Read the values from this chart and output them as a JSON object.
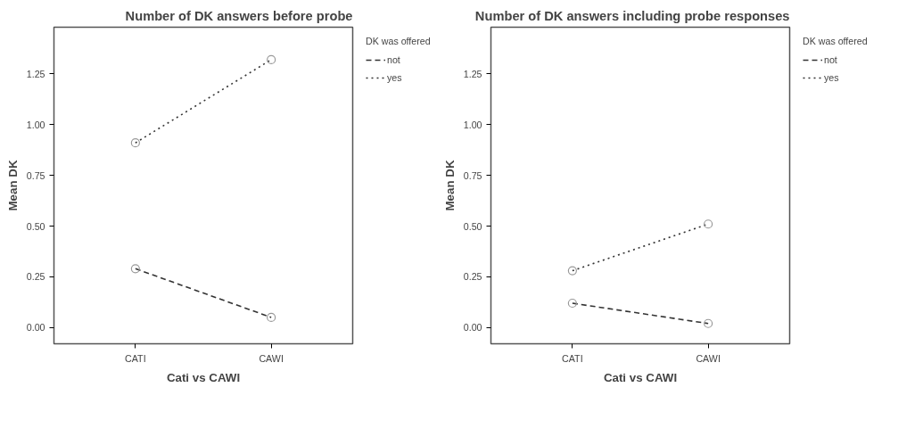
{
  "chart_data": [
    {
      "type": "line",
      "title": "Number of DK answers before probe",
      "xlabel": "Cati vs CAWI",
      "ylabel": "Mean DK",
      "legend_title": "DK was offered",
      "categories": [
        "CATI",
        "CAWI"
      ],
      "ylim": [
        -0.08,
        1.48
      ],
      "yticks": [
        {
          "value": 0,
          "label": "0.00"
        },
        {
          "value": 0.25,
          "label": "0.25"
        },
        {
          "value": 0.5,
          "label": "0.50"
        },
        {
          "value": 0.75,
          "label": "0.75"
        },
        {
          "value": 1,
          "label": "1.00"
        },
        {
          "value": 1.25,
          "label": "1.25"
        }
      ],
      "grid": false,
      "legend": "top right",
      "marker": "circle",
      "series": [
        {
          "name": "not",
          "color": "#333333",
          "line_style": "dashed",
          "values": [
            0.29,
            0.05
          ]
        },
        {
          "name": "yes",
          "color": "#333333",
          "line_style": "dotted",
          "values": [
            0.91,
            1.32
          ]
        }
      ]
    },
    {
      "type": "line",
      "title": "Number of DK answers including probe responses",
      "xlabel": "Cati vs CAWI",
      "ylabel": "Mean DK",
      "legend_title": "DK was offered",
      "categories": [
        "CATI",
        "CAWI"
      ],
      "ylim": [
        -0.08,
        1.48
      ],
      "yticks": [
        {
          "value": 0,
          "label": "0.00"
        },
        {
          "value": 0.25,
          "label": "0.25"
        },
        {
          "value": 0.5,
          "label": "0.50"
        },
        {
          "value": 0.75,
          "label": "0.75"
        },
        {
          "value": 1,
          "label": "1.00"
        },
        {
          "value": 1.25,
          "label": "1.25"
        }
      ],
      "grid": false,
      "legend": "top right",
      "marker": "circle",
      "series": [
        {
          "name": "not",
          "color": "#333333",
          "line_style": "dashed",
          "values": [
            0.12,
            0.02
          ]
        },
        {
          "name": "yes",
          "color": "#333333",
          "line_style": "dotted",
          "values": [
            0.28,
            0.51
          ]
        }
      ]
    }
  ]
}
